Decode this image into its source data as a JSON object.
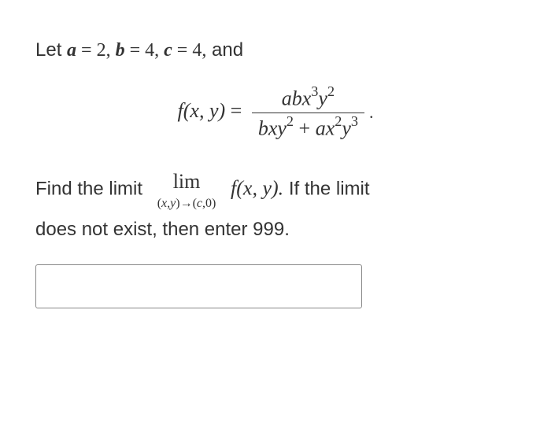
{
  "problem": {
    "intro_prefix": "Let ",
    "a_var": "a",
    "a_eq": " = 2, ",
    "b_var": "b",
    "b_eq": " = 4,  ",
    "c_var": "c",
    "c_eq": " = 4,",
    "intro_suffix": "  and",
    "equation": {
      "lhs": "f(x, y)",
      "eq": " = ",
      "numerator_html": "abx",
      "num_exp1": "3",
      "num_y": "y",
      "num_exp2": "2",
      "den_part1": "bxy",
      "den_exp1": "2",
      "den_plus": " + ",
      "den_part2": "ax",
      "den_exp2": "2",
      "den_y": "y",
      "den_exp3": "3",
      "trailing_dot": "."
    },
    "find_text": "Find the limit",
    "lim_label": "lim",
    "lim_sub_open": "(",
    "lim_sub_x": "x",
    "lim_sub_comma": ",",
    "lim_sub_y": "y",
    "lim_sub_arrow": ")→(",
    "lim_sub_c": "c",
    "lim_sub_close": ",0)",
    "fxy": "f(x, y).",
    "if_text": "  If the limit",
    "dne_text": "does not exist, then enter 999."
  },
  "answer_value": "",
  "styling": {
    "page_bg": "#ffffff",
    "text_color": "#333333",
    "border_color": "#888888",
    "body_fontsize": 24,
    "math_fontsize": 26,
    "limsub_fontsize": 16
  }
}
